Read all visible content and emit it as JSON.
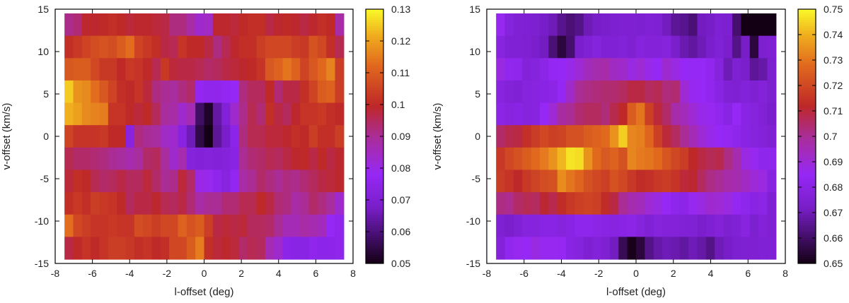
{
  "chart_data": [
    {
      "type": "heatmap",
      "title": "",
      "xlabel": "l-offset (deg)",
      "ylabel": "v-offset (km/s)",
      "xlim": [
        -8,
        8
      ],
      "ylim": [
        -15,
        15
      ],
      "xticks": [
        "-8",
        "-6",
        "-4",
        "-2",
        "0",
        "2",
        "4",
        "6",
        "8"
      ],
      "yticks": [
        "-15",
        "-10",
        "-5",
        "0",
        "5",
        "10",
        "15"
      ],
      "grid_extent": {
        "l": [
          -7.5,
          7.5
        ],
        "v": [
          -14.5,
          14.5
        ]
      },
      "colorbar": {
        "min": 0.05,
        "max": 0.13,
        "ticks": [
          "0.05",
          "0.06",
          "0.07",
          "0.08",
          "0.09",
          "0.1",
          "0.11",
          "0.12",
          "0.13"
        ]
      },
      "rows_top_to_bottom": [
        [
          0.091,
          0.093,
          0.099,
          0.099,
          0.1,
          0.101,
          0.1,
          0.098,
          0.099,
          0.099,
          0.098,
          0.097,
          0.092,
          0.092,
          0.088,
          0.083,
          0.084,
          0.099,
          0.099,
          0.098,
          0.1,
          0.101,
          0.101,
          0.097,
          0.099,
          0.1,
          0.099,
          0.097,
          0.099,
          0.101,
          0.1,
          0.088
        ],
        [
          0.101,
          0.103,
          0.105,
          0.107,
          0.108,
          0.107,
          0.11,
          0.113,
          0.105,
          0.103,
          0.101,
          0.097,
          0.096,
          0.102,
          0.1,
          0.1,
          0.097,
          0.092,
          0.096,
          0.099,
          0.101,
          0.101,
          0.104,
          0.106,
          0.106,
          0.106,
          0.104,
          0.103,
          0.108,
          0.106,
          0.101,
          0.096
        ],
        [
          0.109,
          0.11,
          0.11,
          0.106,
          0.103,
          0.103,
          0.1,
          0.103,
          0.102,
          0.1,
          0.096,
          0.103,
          0.098,
          0.097,
          0.097,
          0.096,
          0.094,
          0.095,
          0.097,
          0.098,
          0.099,
          0.1,
          0.102,
          0.109,
          0.111,
          0.114,
          0.111,
          0.105,
          0.109,
          0.112,
          0.116,
          0.104
        ],
        [
          0.125,
          0.118,
          0.117,
          0.113,
          0.109,
          0.105,
          0.101,
          0.1,
          0.102,
          0.098,
          0.092,
          0.09,
          0.089,
          0.092,
          0.094,
          0.077,
          0.076,
          0.076,
          0.077,
          0.078,
          0.092,
          0.095,
          0.095,
          0.1,
          0.093,
          0.097,
          0.097,
          0.101,
          0.105,
          0.11,
          0.111,
          0.104
        ],
        [
          0.122,
          0.12,
          0.117,
          0.116,
          0.115,
          0.102,
          0.102,
          0.1,
          0.098,
          0.1,
          0.095,
          0.089,
          0.088,
          0.083,
          0.086,
          0.058,
          0.052,
          0.064,
          0.071,
          0.083,
          0.091,
          0.096,
          0.093,
          0.101,
          0.097,
          0.095,
          0.099,
          0.102,
          0.102,
          0.103,
          0.101,
          0.1
        ],
        [
          0.105,
          0.102,
          0.102,
          0.102,
          0.103,
          0.1,
          0.1,
          0.073,
          0.092,
          0.09,
          0.089,
          0.084,
          0.083,
          0.073,
          0.066,
          0.055,
          0.05,
          0.063,
          0.068,
          0.075,
          0.092,
          0.096,
          0.096,
          0.098,
          0.098,
          0.099,
          0.101,
          0.1,
          0.104,
          0.101,
          0.101,
          0.104
        ],
        [
          0.096,
          0.094,
          0.094,
          0.093,
          0.092,
          0.09,
          0.089,
          0.087,
          0.089,
          0.094,
          0.095,
          0.089,
          0.083,
          0.087,
          0.072,
          0.071,
          0.072,
          0.071,
          0.072,
          0.074,
          0.09,
          0.093,
          0.094,
          0.096,
          0.095,
          0.097,
          0.099,
          0.1,
          0.097,
          0.1,
          0.097,
          0.099
        ],
        [
          0.098,
          0.101,
          0.1,
          0.096,
          0.094,
          0.095,
          0.097,
          0.095,
          0.095,
          0.098,
          0.094,
          0.09,
          0.091,
          0.098,
          0.094,
          0.08,
          0.079,
          0.076,
          0.073,
          0.077,
          0.088,
          0.09,
          0.094,
          0.092,
          0.09,
          0.092,
          0.091,
          0.093,
          0.095,
          0.097,
          0.098,
          0.099
        ],
        [
          0.101,
          0.103,
          0.101,
          0.104,
          0.103,
          0.102,
          0.1,
          0.095,
          0.097,
          0.097,
          0.099,
          0.096,
          0.095,
          0.097,
          0.093,
          0.088,
          0.09,
          0.09,
          0.093,
          0.093,
          0.096,
          0.096,
          0.1,
          0.097,
          0.093,
          0.092,
          0.088,
          0.09,
          0.094,
          0.092,
          0.089,
          0.083
        ],
        [
          0.113,
          0.106,
          0.104,
          0.102,
          0.102,
          0.103,
          0.102,
          0.102,
          0.107,
          0.106,
          0.104,
          0.106,
          0.106,
          0.111,
          0.108,
          0.11,
          0.104,
          0.097,
          0.098,
          0.097,
          0.098,
          0.095,
          0.095,
          0.094,
          0.09,
          0.086,
          0.086,
          0.088,
          0.087,
          0.085,
          0.078,
          0.076
        ],
        [
          0.097,
          0.1,
          0.102,
          0.1,
          0.102,
          0.104,
          0.104,
          0.103,
          0.101,
          0.102,
          0.1,
          0.101,
          0.106,
          0.106,
          0.11,
          0.115,
          0.101,
          0.098,
          0.099,
          0.098,
          0.094,
          0.096,
          0.095,
          0.086,
          0.083,
          0.075,
          0.074,
          0.074,
          0.076,
          0.075,
          0.075,
          0.076
        ]
      ]
    },
    {
      "type": "heatmap",
      "title": "",
      "xlabel": "l-offset (deg)",
      "ylabel": "v-offset (km/s)",
      "xlim": [
        -8,
        8
      ],
      "ylim": [
        -15,
        15
      ],
      "xticks": [
        "-8",
        "-6",
        "-4",
        "-2",
        "0",
        "2",
        "4",
        "6",
        "8"
      ],
      "yticks": [
        "-15",
        "-10",
        "-5",
        "0",
        "5",
        "10",
        "15"
      ],
      "grid_extent": {
        "l": [
          -7.5,
          7.5
        ],
        "v": [
          -14.5,
          14.5
        ]
      },
      "colorbar": {
        "min": 0.65,
        "max": 0.75,
        "ticks": [
          "0.65",
          "0.66",
          "0.67",
          "0.68",
          "0.69",
          "0.7",
          "0.71",
          "0.72",
          "0.73",
          "0.74",
          "0.75"
        ]
      },
      "rows_top_to_bottom": [
        [
          0.686,
          0.678,
          0.676,
          0.675,
          0.674,
          0.672,
          0.67,
          0.665,
          0.662,
          0.664,
          0.67,
          0.672,
          0.673,
          0.674,
          0.675,
          0.675,
          0.674,
          0.676,
          0.675,
          0.671,
          0.666,
          0.665,
          0.662,
          0.671,
          0.672,
          0.675,
          0.674,
          0.661,
          0.65,
          0.65,
          0.65,
          0.65
        ],
        [
          0.679,
          0.676,
          0.676,
          0.675,
          0.673,
          0.671,
          0.662,
          0.655,
          0.661,
          0.673,
          0.676,
          0.678,
          0.676,
          0.676,
          0.677,
          0.675,
          0.678,
          0.677,
          0.677,
          0.678,
          0.673,
          0.669,
          0.667,
          0.67,
          0.673,
          0.676,
          0.673,
          0.664,
          0.672,
          0.655,
          0.674,
          0.675
        ],
        [
          0.688,
          0.683,
          0.682,
          0.677,
          0.678,
          0.681,
          0.684,
          0.685,
          0.687,
          0.69,
          0.694,
          0.696,
          0.697,
          0.693,
          0.692,
          0.688,
          0.69,
          0.687,
          0.685,
          0.691,
          0.688,
          0.685,
          0.685,
          0.685,
          0.683,
          0.678,
          0.67,
          0.675,
          0.673,
          0.666,
          0.668,
          0.674
        ],
        [
          0.679,
          0.677,
          0.676,
          0.678,
          0.679,
          0.68,
          0.681,
          0.684,
          0.692,
          0.7,
          0.702,
          0.703,
          0.704,
          0.704,
          0.706,
          0.709,
          0.709,
          0.706,
          0.707,
          0.703,
          0.704,
          0.69,
          0.686,
          0.685,
          0.683,
          0.68,
          0.676,
          0.675,
          0.677,
          0.675,
          0.677,
          0.674
        ],
        [
          0.681,
          0.679,
          0.68,
          0.678,
          0.679,
          0.685,
          0.69,
          0.698,
          0.7,
          0.704,
          0.706,
          0.706,
          0.703,
          0.708,
          0.712,
          0.725,
          0.73,
          0.718,
          0.71,
          0.705,
          0.697,
          0.694,
          0.69,
          0.687,
          0.686,
          0.683,
          0.68,
          0.685,
          0.68,
          0.678,
          0.676,
          0.673
        ],
        [
          0.705,
          0.708,
          0.709,
          0.714,
          0.717,
          0.72,
          0.718,
          0.719,
          0.722,
          0.722,
          0.725,
          0.726,
          0.728,
          0.735,
          0.744,
          0.733,
          0.732,
          0.727,
          0.718,
          0.71,
          0.706,
          0.7,
          0.695,
          0.69,
          0.687,
          0.685,
          0.684,
          0.682,
          0.68,
          0.678,
          0.677,
          0.675
        ],
        [
          0.716,
          0.72,
          0.722,
          0.725,
          0.728,
          0.731,
          0.735,
          0.741,
          0.747,
          0.746,
          0.735,
          0.728,
          0.724,
          0.726,
          0.722,
          0.733,
          0.731,
          0.73,
          0.728,
          0.723,
          0.72,
          0.717,
          0.712,
          0.709,
          0.707,
          0.708,
          0.702,
          0.696,
          0.688,
          0.686,
          0.682,
          0.682
        ],
        [
          0.717,
          0.715,
          0.712,
          0.716,
          0.719,
          0.721,
          0.722,
          0.734,
          0.73,
          0.727,
          0.722,
          0.72,
          0.718,
          0.722,
          0.72,
          0.716,
          0.713,
          0.714,
          0.716,
          0.717,
          0.715,
          0.71,
          0.711,
          0.706,
          0.702,
          0.7,
          0.697,
          0.696,
          0.693,
          0.69,
          0.688,
          0.679
        ],
        [
          0.702,
          0.701,
          0.705,
          0.707,
          0.706,
          0.711,
          0.708,
          0.713,
          0.716,
          0.718,
          0.719,
          0.718,
          0.713,
          0.709,
          0.7,
          0.696,
          0.694,
          0.69,
          0.688,
          0.685,
          0.682,
          0.681,
          0.686,
          0.688,
          0.691,
          0.69,
          0.688,
          0.684,
          0.682,
          0.68,
          0.681,
          0.675
        ],
        [
          0.675,
          0.673,
          0.676,
          0.678,
          0.678,
          0.68,
          0.68,
          0.678,
          0.68,
          0.682,
          0.682,
          0.681,
          0.68,
          0.679,
          0.68,
          0.681,
          0.678,
          0.676,
          0.678,
          0.677,
          0.677,
          0.676,
          0.676,
          0.673,
          0.675,
          0.677,
          0.674,
          0.676,
          0.679,
          0.674,
          0.677,
          0.675
        ],
        [
          0.677,
          0.683,
          0.686,
          0.685,
          0.688,
          0.686,
          0.686,
          0.684,
          0.68,
          0.678,
          0.675,
          0.677,
          0.675,
          0.671,
          0.658,
          0.651,
          0.655,
          0.664,
          0.668,
          0.67,
          0.669,
          0.667,
          0.67,
          0.668,
          0.664,
          0.67,
          0.672,
          0.674,
          0.675,
          0.675,
          0.676,
          0.676
        ]
      ]
    }
  ]
}
